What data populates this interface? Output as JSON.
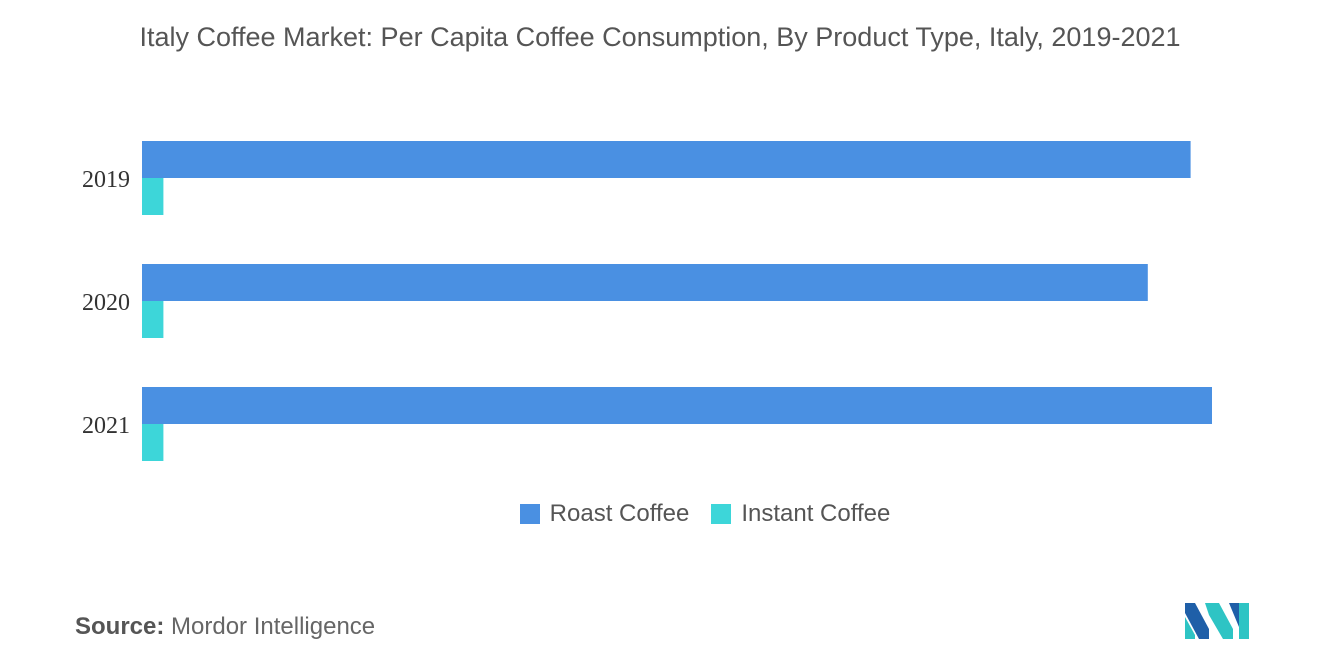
{
  "chart_data": {
    "type": "bar",
    "orientation": "horizontal",
    "title": "Italy Coffee Market: Per Capita Coffee Consumption, By Product Type, Italy, 2019-2021",
    "categories": [
      "2019",
      "2020",
      "2021"
    ],
    "series": [
      {
        "name": "Roast Coffee",
        "color": "#4a90e2",
        "values": [
          4.9,
          4.7,
          5.0
        ]
      },
      {
        "name": "Instant Coffee",
        "color": "#3dd6d9",
        "values": [
          0.1,
          0.1,
          0.1
        ]
      }
    ],
    "xlim": [
      0,
      5.0
    ],
    "grid": false,
    "legend_position": "bottom"
  },
  "source": {
    "label": "Source:",
    "value": "Mordor Intelligence"
  },
  "logo_icon": "mordor-intelligence-logo-icon"
}
